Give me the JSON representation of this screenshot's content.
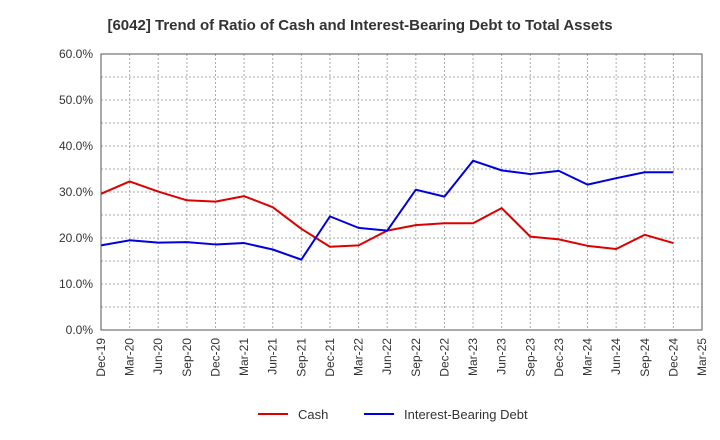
{
  "chart_data": {
    "type": "line",
    "title": "[6042]  Trend of Ratio of Cash and Interest-Bearing Debt to Total Assets",
    "xlabel": "",
    "ylabel": "",
    "categories": [
      "Dec-19",
      "Mar-20",
      "Jun-20",
      "Sep-20",
      "Dec-20",
      "Mar-21",
      "Jun-21",
      "Sep-21",
      "Dec-21",
      "Mar-22",
      "Jun-22",
      "Sep-22",
      "Dec-22",
      "Mar-23",
      "Jun-23",
      "Sep-23",
      "Dec-23",
      "Mar-24",
      "Jun-24",
      "Sep-24",
      "Dec-24",
      "Mar-25"
    ],
    "ylim": [
      0,
      60
    ],
    "yticks": [
      0,
      10,
      20,
      30,
      40,
      50,
      60
    ],
    "ytick_labels": [
      "0.0%",
      "10.0%",
      "20.0%",
      "30.0%",
      "40.0%",
      "50.0%",
      "60.0%"
    ],
    "grid": true,
    "legend_position": "bottom",
    "series": [
      {
        "name": "Cash",
        "color": "#dd0000",
        "values": [
          29.6,
          32.3,
          30.1,
          28.2,
          27.9,
          29.1,
          26.7,
          22.0,
          18.1,
          18.4,
          21.6,
          22.8,
          23.2,
          23.2,
          26.5,
          20.3,
          19.7,
          18.3,
          17.6,
          20.7,
          18.9,
          null
        ]
      },
      {
        "name": "Interest-Bearing Debt",
        "color": "#0000dd",
        "values": [
          18.4,
          19.5,
          19.0,
          19.1,
          18.6,
          18.9,
          17.5,
          15.3,
          24.7,
          22.2,
          21.6,
          30.5,
          29.0,
          36.8,
          34.7,
          33.9,
          34.6,
          31.6,
          33.0,
          34.3,
          34.3,
          null
        ]
      }
    ]
  }
}
